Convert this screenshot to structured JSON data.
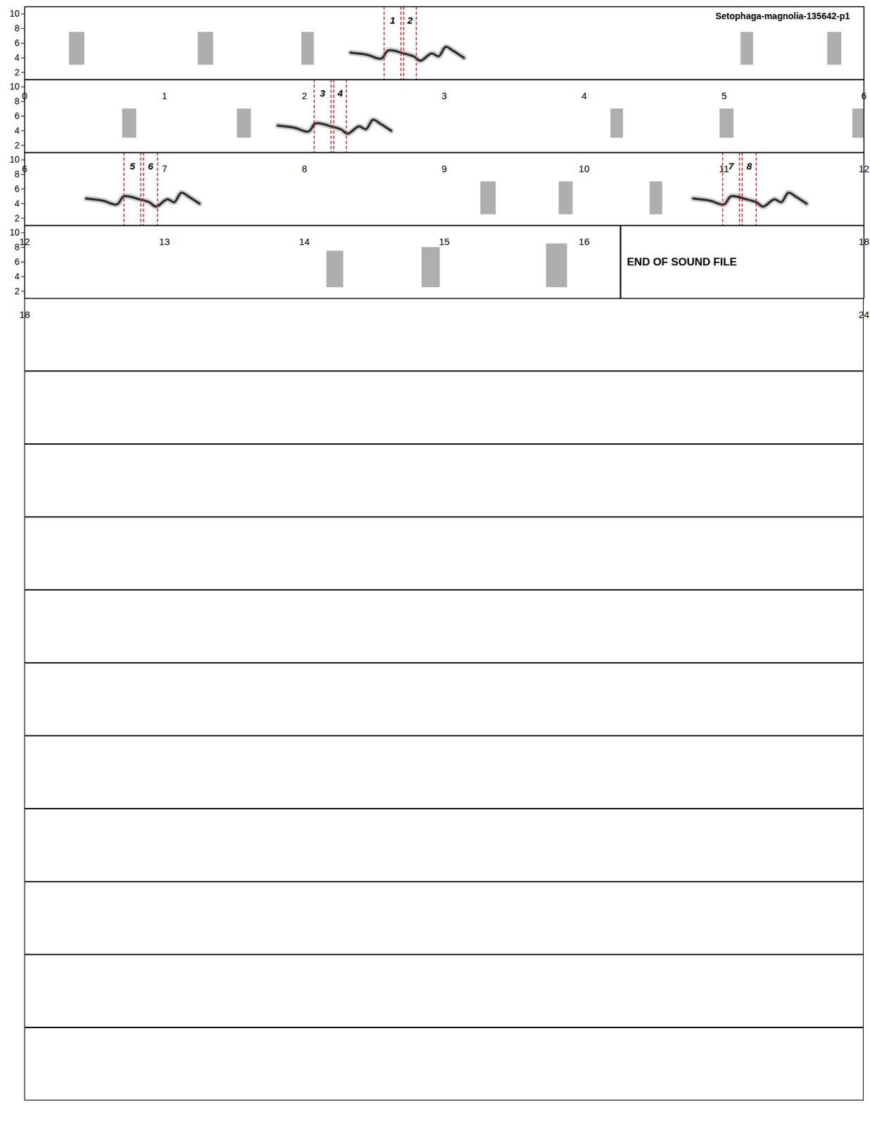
{
  "chart_data": {
    "type": "spectrogram",
    "title": "Setophaga-magnolia-135642-p1",
    "end_label": "END OF SOUND FILE",
    "end_time": 22.26,
    "ylim": [
      1,
      11
    ],
    "yticks": [
      2,
      4,
      6,
      8,
      10
    ],
    "rows": [
      {
        "xlim": [
          0,
          6
        ],
        "xticks": [
          0,
          1,
          2,
          3,
          4,
          5,
          6
        ]
      },
      {
        "xlim": [
          6,
          12
        ],
        "xticks": [
          6,
          7,
          8,
          9,
          10,
          11,
          12
        ]
      },
      {
        "xlim": [
          12,
          18
        ],
        "xticks": [
          12,
          13,
          14,
          15,
          16,
          18
        ]
      },
      {
        "xlim": [
          18,
          24
        ],
        "xticks": [
          18,
          24
        ]
      }
    ],
    "calls": [
      {
        "start": 0.32,
        "end": 0.43,
        "freq_low": 3.0,
        "freq_high": 7.5
      },
      {
        "start": 1.24,
        "end": 1.35,
        "freq_low": 3.0,
        "freq_high": 7.5
      },
      {
        "start": 1.98,
        "end": 2.07,
        "freq_low": 3.0,
        "freq_high": 7.5
      },
      {
        "start": 5.12,
        "end": 5.21,
        "freq_low": 3.0,
        "freq_high": 7.5
      },
      {
        "start": 5.74,
        "end": 5.84,
        "freq_low": 3.0,
        "freq_high": 7.5
      },
      {
        "start": 6.7,
        "end": 6.8,
        "freq_low": 3.0,
        "freq_high": 7.0
      },
      {
        "start": 7.52,
        "end": 7.62,
        "freq_low": 3.0,
        "freq_high": 7.0
      },
      {
        "start": 10.19,
        "end": 10.28,
        "freq_low": 3.0,
        "freq_high": 7.0
      },
      {
        "start": 10.97,
        "end": 11.07,
        "freq_low": 3.0,
        "freq_high": 7.0
      },
      {
        "start": 11.92,
        "end": 12.0,
        "freq_low": 3.0,
        "freq_high": 7.0
      },
      {
        "start": 15.26,
        "end": 15.37,
        "freq_low": 2.5,
        "freq_high": 7.0
      },
      {
        "start": 15.82,
        "end": 15.92,
        "freq_low": 2.5,
        "freq_high": 7.0
      },
      {
        "start": 16.47,
        "end": 16.56,
        "freq_low": 2.5,
        "freq_high": 7.0
      },
      {
        "start": 20.16,
        "end": 20.28,
        "freq_low": 2.5,
        "freq_high": 7.5
      },
      {
        "start": 20.84,
        "end": 20.97,
        "freq_low": 2.5,
        "freq_high": 8.0
      },
      {
        "start": 21.73,
        "end": 21.88,
        "freq_low": 2.5,
        "freq_high": 8.5
      }
    ],
    "songs": [
      {
        "time": [
          2.33,
          2.45,
          2.55,
          2.6,
          2.71,
          2.78,
          2.83,
          2.91,
          2.96,
          3.01,
          3.06,
          3.14
        ],
        "freq": [
          4.7,
          4.4,
          3.9,
          5.0,
          4.6,
          4.2,
          3.6,
          4.6,
          4.2,
          5.5,
          5.0,
          4.0
        ]
      },
      {
        "time": [
          7.81,
          7.93,
          8.03,
          8.08,
          8.19,
          8.26,
          8.31,
          8.39,
          8.44,
          8.49,
          8.54,
          8.62
        ],
        "freq": [
          4.7,
          4.4,
          3.9,
          5.0,
          4.6,
          4.2,
          3.6,
          4.6,
          4.2,
          5.5,
          5.0,
          4.0
        ]
      },
      {
        "time": [
          12.44,
          12.56,
          12.66,
          12.71,
          12.82,
          12.89,
          12.94,
          13.02,
          13.07,
          13.12,
          13.17,
          13.25
        ],
        "freq": [
          4.7,
          4.4,
          3.9,
          5.0,
          4.6,
          4.2,
          3.6,
          4.6,
          4.2,
          5.5,
          5.0,
          4.0
        ]
      },
      {
        "time": [
          16.78,
          16.9,
          17.0,
          17.05,
          17.16,
          17.23,
          17.28,
          17.36,
          17.41,
          17.46,
          17.51,
          17.59
        ],
        "freq": [
          4.7,
          4.4,
          3.9,
          5.0,
          4.6,
          4.2,
          3.6,
          4.6,
          4.2,
          5.5,
          5.0,
          4.0
        ]
      }
    ],
    "markers": [
      {
        "label": "1",
        "start": 2.57,
        "end": 2.69
      },
      {
        "label": "2",
        "start": 2.71,
        "end": 2.8
      },
      {
        "label": "3",
        "start": 8.07,
        "end": 8.19
      },
      {
        "label": "4",
        "start": 8.21,
        "end": 8.3
      },
      {
        "label": "5",
        "start": 12.71,
        "end": 12.83
      },
      {
        "label": "6",
        "start": 12.85,
        "end": 12.95
      },
      {
        "label": "7",
        "start": 16.99,
        "end": 17.11
      },
      {
        "label": "8",
        "start": 17.13,
        "end": 17.23
      }
    ]
  }
}
